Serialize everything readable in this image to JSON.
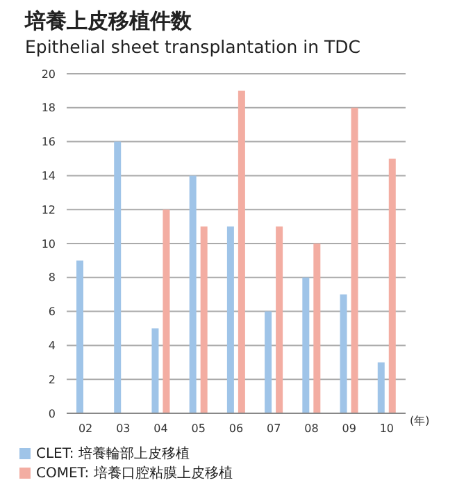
{
  "chart_data": {
    "type": "bar",
    "title": "培養上皮移植件数",
    "subtitle": "Epithelial sheet transplantation in TDC",
    "xlabel": "(年)",
    "categories": [
      "02",
      "03",
      "04",
      "05",
      "06",
      "07",
      "08",
      "09",
      "10"
    ],
    "series": [
      {
        "name": "CLET: 培養輪部上皮移植",
        "color": "#9fc4e8",
        "values": [
          9,
          16,
          5,
          14,
          11,
          6,
          8,
          7,
          3
        ]
      },
      {
        "name": "COMET: 培養口腔粘膜上皮移植",
        "color": "#f3ada2",
        "values": [
          null,
          null,
          12,
          11,
          19,
          11,
          10,
          18,
          15
        ]
      }
    ],
    "ylim": [
      0,
      20
    ],
    "yticks": [
      0,
      2,
      4,
      6,
      8,
      10,
      12,
      14,
      16,
      18,
      20
    ],
    "grid": "y",
    "legend": "bottom left"
  }
}
